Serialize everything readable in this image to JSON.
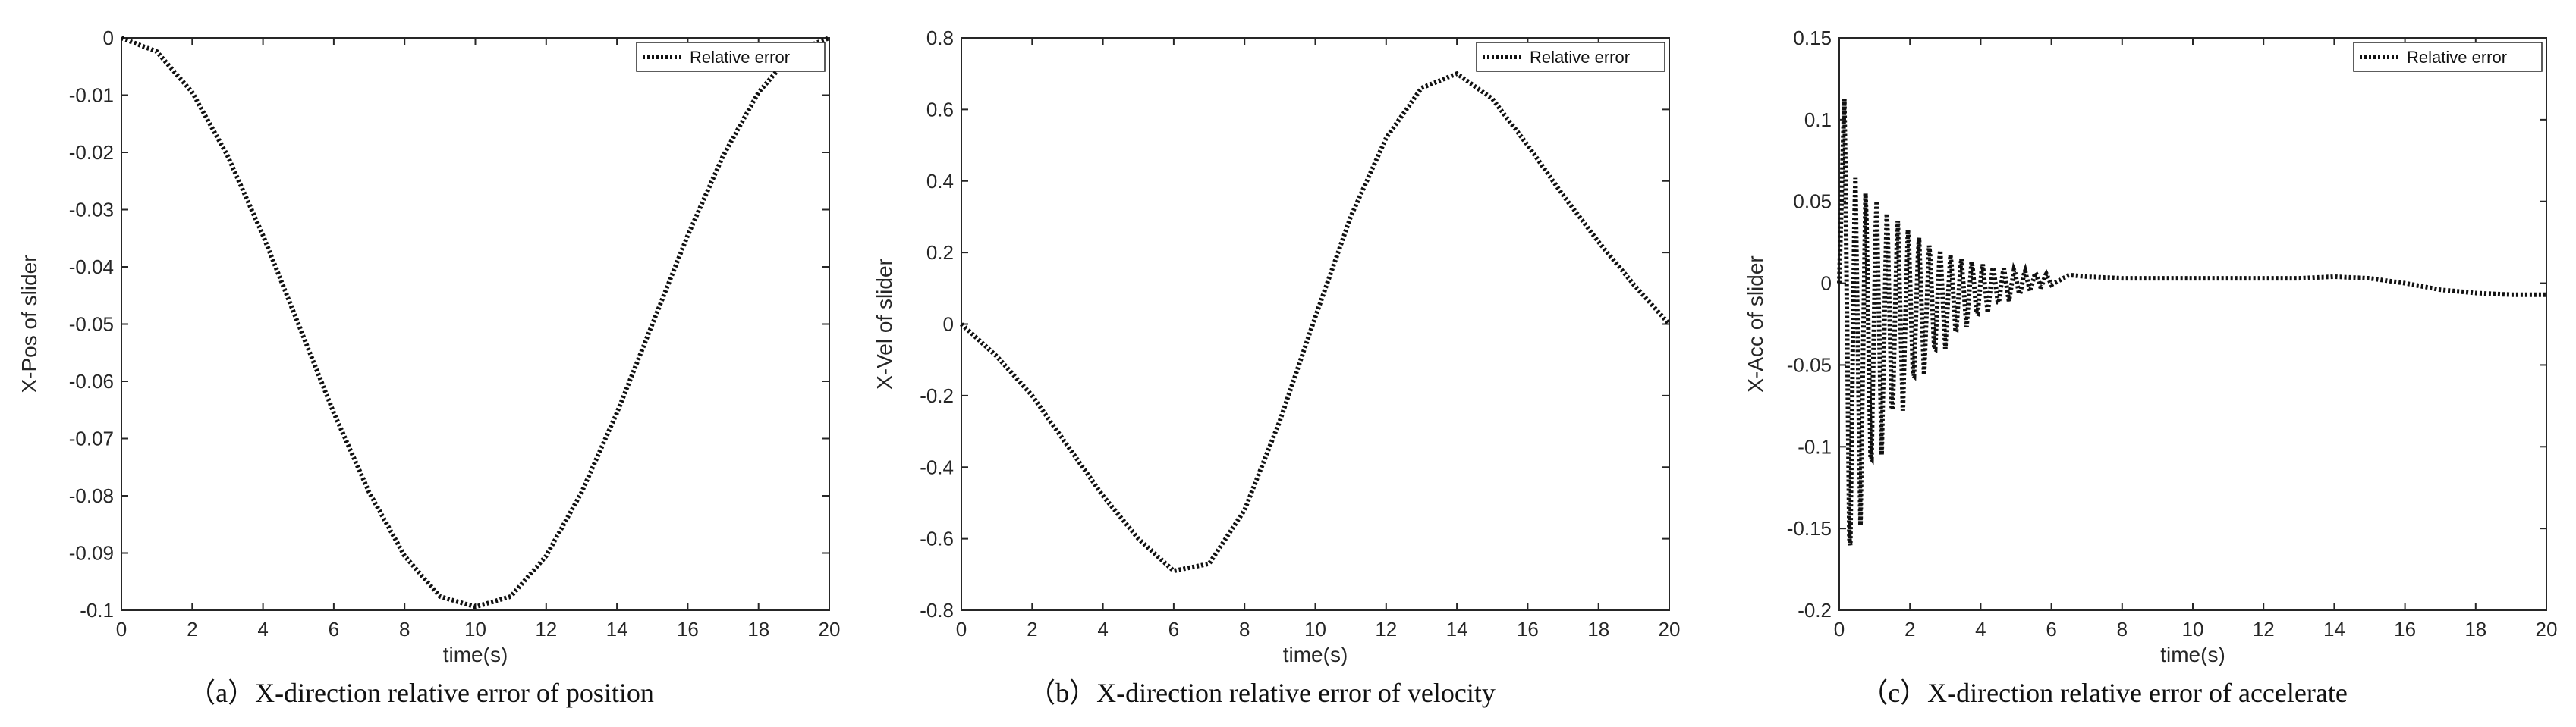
{
  "chart_data": [
    {
      "type": "line",
      "caption": "（a）X-direction relative error of position",
      "xlabel": "time(s)",
      "ylabel": "X-Pos of slider",
      "xlim": [
        0,
        20
      ],
      "ylim": [
        -0.1,
        0
      ],
      "xticks": [
        "0",
        "2",
        "4",
        "6",
        "8",
        "10",
        "12",
        "14",
        "16",
        "18",
        "20"
      ],
      "yticks": [
        "0",
        "-0.01",
        "-0.02",
        "-0.03",
        "-0.04",
        "-0.05",
        "-0.06",
        "-0.07",
        "-0.08",
        "-0.09",
        "-0.1"
      ],
      "legend": {
        "label": "Relative error",
        "position": "top-right"
      },
      "line_style": "dotted",
      "series": [
        {
          "name": "Relative error",
          "x": [
            0,
            1,
            2,
            3,
            4,
            5,
            6,
            7,
            8,
            9,
            10,
            11,
            12,
            13,
            14,
            15,
            16,
            17,
            18,
            19,
            20
          ],
          "y": [
            0,
            -0.0024,
            -0.0095,
            -0.0206,
            -0.0345,
            -0.05,
            -0.0655,
            -0.0794,
            -0.0905,
            -0.0976,
            -0.0994,
            -0.0976,
            -0.0905,
            -0.0794,
            -0.0655,
            -0.05,
            -0.0345,
            -0.0206,
            -0.0095,
            -0.0024,
            0
          ]
        }
      ]
    },
    {
      "type": "line",
      "caption": "（b）X-direction relative error of velocity",
      "xlabel": "time(s)",
      "ylabel": "X-Vel of slider",
      "xlim": [
        0,
        20
      ],
      "ylim": [
        -0.8,
        0.8
      ],
      "xticks": [
        "0",
        "2",
        "4",
        "6",
        "8",
        "10",
        "12",
        "14",
        "16",
        "18",
        "20"
      ],
      "yticks": [
        "0.8",
        "0.6",
        "0.4",
        "0.2",
        "0",
        "-0.2",
        "-0.4",
        "-0.6",
        "-0.8"
      ],
      "legend": {
        "label": "Relative error",
        "position": "top-right"
      },
      "line_style": "dotted",
      "series": [
        {
          "name": "Relative error",
          "x": [
            0,
            1,
            2,
            3,
            4,
            5,
            6,
            7,
            8,
            9,
            10,
            11,
            12,
            13,
            14,
            15,
            16,
            17,
            18,
            19,
            20
          ],
          "y": [
            0,
            -0.09,
            -0.2,
            -0.34,
            -0.48,
            -0.6,
            -0.69,
            -0.67,
            -0.52,
            -0.27,
            0.02,
            0.3,
            0.52,
            0.66,
            0.7,
            0.63,
            0.5,
            0.36,
            0.23,
            0.11,
            0
          ]
        }
      ]
    },
    {
      "type": "line",
      "caption": "（c）X-direction relative error of accelerate",
      "xlabel": "time(s)",
      "ylabel": "X-Acc of slider",
      "xlim": [
        0,
        20
      ],
      "ylim": [
        -0.2,
        0.15
      ],
      "xticks": [
        "0",
        "2",
        "4",
        "6",
        "8",
        "10",
        "12",
        "14",
        "16",
        "18",
        "20"
      ],
      "yticks": [
        "0.15",
        "0.1",
        "0.05",
        "0",
        "-0.05",
        "-0.1",
        "-0.15",
        "-0.2"
      ],
      "legend": {
        "label": "Relative error",
        "position": "top-right"
      },
      "line_style": "dotted",
      "series": [
        {
          "name": "Relative error",
          "x": [
            0,
            0.15,
            0.3,
            0.45,
            0.6,
            0.75,
            0.9,
            1.05,
            1.2,
            1.35,
            1.5,
            1.65,
            1.8,
            1.95,
            2.1,
            2.25,
            2.4,
            2.55,
            2.7,
            2.85,
            3,
            3.15,
            3.3,
            3.45,
            3.6,
            3.75,
            3.9,
            4.05,
            4.2,
            4.35,
            4.5,
            4.65,
            4.8,
            4.95,
            5.1,
            5.25,
            5.4,
            5.55,
            5.7,
            5.85,
            6,
            6.5,
            7,
            8,
            9,
            10,
            11,
            12,
            13,
            14,
            15,
            16,
            17,
            18,
            19,
            20
          ],
          "y": [
            0,
            0.118,
            -0.185,
            0.075,
            -0.148,
            0.065,
            -0.125,
            0.058,
            -0.105,
            0.05,
            -0.09,
            0.044,
            -0.078,
            0.038,
            -0.066,
            0.032,
            -0.056,
            0.027,
            -0.047,
            0.023,
            -0.04,
            0.02,
            -0.033,
            0.017,
            -0.027,
            0.015,
            -0.022,
            0.013,
            -0.018,
            0.011,
            -0.014,
            0.01,
            -0.011,
            0.009,
            -0.008,
            0.008,
            -0.005,
            0.007,
            -0.003,
            0.006,
            -0.001,
            0.005,
            0.004,
            0.003,
            0.003,
            0.003,
            0.003,
            0.003,
            0.003,
            0.004,
            0.003,
            0.0,
            -0.004,
            -0.006,
            -0.007,
            -0.007
          ]
        }
      ]
    }
  ]
}
